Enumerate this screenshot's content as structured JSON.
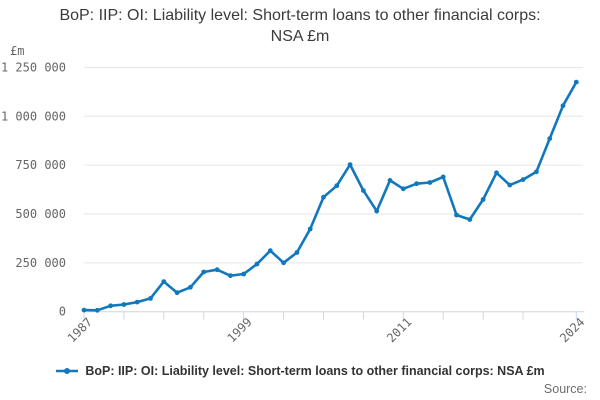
{
  "title": "BoP: IIP: OI: Liability level: Short-term loans to other financial corps: NSA £m",
  "y_axis_unit": "£m",
  "source_label": "Source:",
  "legend": {
    "label": "BoP: IIP: OI: Liability level: Short-term loans to other financial corps: NSA £m"
  },
  "colors": {
    "line": "#1178be",
    "grid": "#e6e6e6",
    "axis": "#ccd6eb",
    "tick_label": "#666666",
    "title_text": "#3b3b3b",
    "legend_text": "#333333",
    "source_text": "#6e6e6e"
  },
  "chart_data": {
    "type": "line",
    "title": "BoP: IIP: OI: Liability level: Short-term loans to other financial corps: NSA £m",
    "xlabel": "",
    "ylabel": "£m",
    "grid": true,
    "legend_position": "bottom",
    "marker": "circle",
    "ylim": [
      0,
      1250000
    ],
    "y_ticks": [
      0,
      250000,
      500000,
      750000,
      1000000,
      1250000
    ],
    "y_tick_labels": [
      "0",
      "250 000",
      "500 000",
      "750 000",
      "1 000 000",
      "1 250 000"
    ],
    "x_ticks": [
      1987,
      1990,
      1993,
      1996,
      1999,
      2002,
      2005,
      2008,
      2011,
      2014,
      2017,
      2020,
      2024
    ],
    "x_labeled_ticks": [
      1987,
      1999,
      2011,
      2024
    ],
    "x": [
      1987,
      1988,
      1989,
      1990,
      1991,
      1992,
      1993,
      1994,
      1995,
      1996,
      1997,
      1998,
      1999,
      2000,
      2001,
      2002,
      2003,
      2004,
      2005,
      2006,
      2007,
      2008,
      2009,
      2010,
      2011,
      2012,
      2013,
      2014,
      2015,
      2016,
      2017,
      2018,
      2019,
      2020,
      2021,
      2022,
      2023,
      2024
    ],
    "values": [
      8000,
      7000,
      30000,
      37000,
      49000,
      68000,
      154000,
      97000,
      125000,
      203000,
      215000,
      184000,
      193000,
      244000,
      312000,
      250000,
      303000,
      423000,
      586000,
      645000,
      753000,
      620000,
      515000,
      672000,
      629000,
      655000,
      661000,
      690000,
      495000,
      472000,
      574000,
      711000,
      648000,
      676000,
      716000,
      886000,
      1054000,
      1175000
    ]
  }
}
